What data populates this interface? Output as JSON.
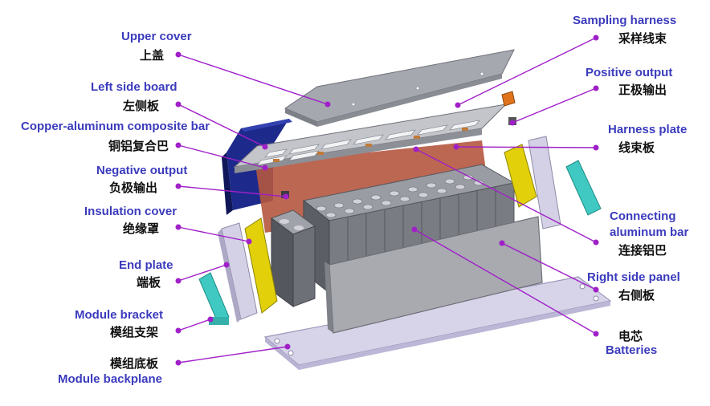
{
  "colors": {
    "label_en": "#3b3bbd",
    "label_zh": "#111111",
    "leader": "#a020c8",
    "metal": "#a6a8b0",
    "metal_dark": "#6e7078",
    "cell": "#7a7c84",
    "cell_dark": "#55575e",
    "busbar_copper": "#c07a3a",
    "insulation_yellow": "#e2d10a",
    "bracket_teal": "#3fc9c2",
    "left_board_blue": "#1d2a8c",
    "backplane_lavender": "#d7d4ea",
    "red_sheet": "#b5573f",
    "positive_orange": "#e0741c"
  },
  "labels": {
    "upper_cover": {
      "en": "Upper cover",
      "zh": "上盖"
    },
    "left_side_board": {
      "en": "Left side board",
      "zh": "左侧板"
    },
    "copper_aluminum_bar": {
      "en": "Copper-aluminum composite bar",
      "zh": "铜铝复合巴"
    },
    "negative_output": {
      "en": "Negative output",
      "zh": "负极输出"
    },
    "insulation_cover": {
      "en": "Insulation cover",
      "zh": "绝缘罩"
    },
    "end_plate": {
      "en": "End plate",
      "zh": "端板"
    },
    "module_bracket": {
      "en": "Module bracket",
      "zh": "模组支架"
    },
    "module_backplane": {
      "en": "Module backplane",
      "zh": "模组底板"
    },
    "sampling_harness": {
      "en": "Sampling harness",
      "zh": "采样线束"
    },
    "positive_output": {
      "en": "Positive output",
      "zh": "正极输出"
    },
    "harness_plate": {
      "en": "Harness plate",
      "zh": "线束板"
    },
    "connecting_aluminum_bar": {
      "en_line1": "Connecting",
      "en_line2": "aluminum bar",
      "zh": "连接铝巴"
    },
    "right_side_panel": {
      "en": "Right side panel",
      "zh": "右侧板"
    },
    "batteries": {
      "en": "Batteries",
      "zh": "电芯"
    }
  }
}
